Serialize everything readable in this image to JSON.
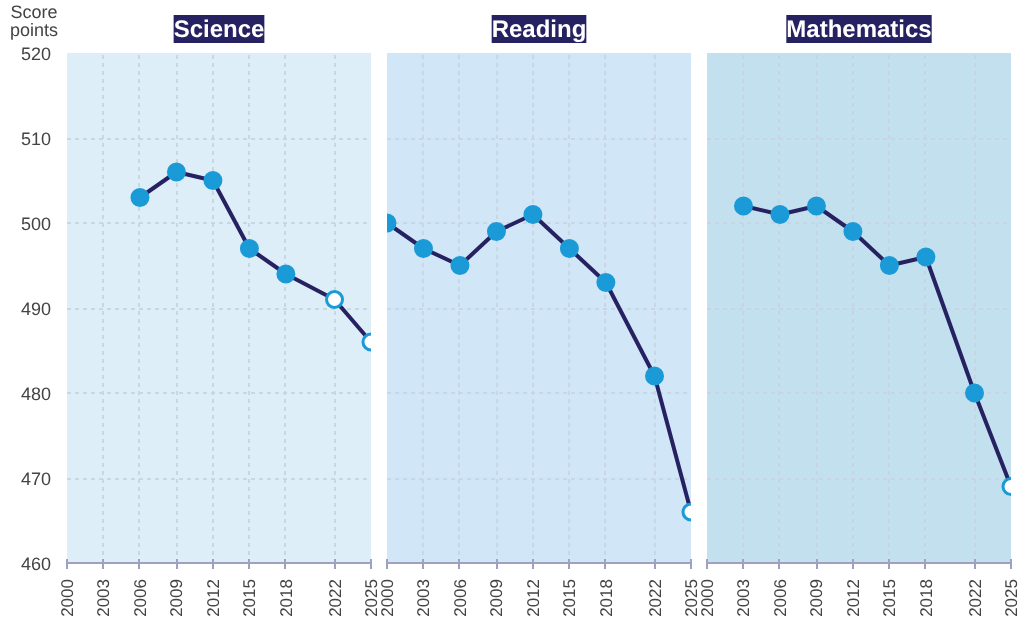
{
  "chart_data": [
    {
      "type": "line",
      "title": "Science",
      "ylabel": "Score points",
      "marker": "circle",
      "grid": true,
      "xlim": [
        2000,
        2025
      ],
      "ylim": [
        460,
        520
      ],
      "xticks": [
        2000,
        2003,
        2006,
        2009,
        2012,
        2015,
        2018,
        2022,
        2025
      ],
      "yticks": [
        460,
        470,
        480,
        490,
        500,
        510,
        520
      ],
      "series": [
        {
          "color": "#262262",
          "x": [
            2006,
            2009,
            2012,
            2015,
            2018,
            2022,
            2025
          ],
          "values": [
            503,
            506,
            505,
            497,
            494,
            491,
            486
          ],
          "colors": [
            "#1a9ad6",
            "#1a9ad6",
            "#1a9ad6",
            "#1a9ad6",
            "#1a9ad6",
            "#ffffff",
            "#ffffff"
          ]
        }
      ]
    },
    {
      "type": "line",
      "title": "Reading",
      "marker": "circle",
      "grid": true,
      "tick_labels": "x",
      "xlim": [
        2000,
        2025
      ],
      "ylim": [
        460,
        520
      ],
      "xticks": [
        2000,
        2003,
        2006,
        2009,
        2012,
        2015,
        2018,
        2022,
        2025
      ],
      "yticks": [
        460,
        470,
        480,
        490,
        500,
        510,
        520
      ],
      "series": [
        {
          "color": "#262262",
          "x": [
            2000,
            2003,
            2006,
            2009,
            2012,
            2015,
            2018,
            2022,
            2025
          ],
          "values": [
            500,
            497,
            495,
            499,
            501,
            497,
            493,
            482,
            466
          ],
          "colors": [
            "#1a9ad6",
            "#1a9ad6",
            "#1a9ad6",
            "#1a9ad6",
            "#1a9ad6",
            "#1a9ad6",
            "#1a9ad6",
            "#1a9ad6",
            "#ffffff"
          ]
        }
      ]
    },
    {
      "type": "line",
      "title": "Mathematics",
      "marker": "circle",
      "grid": true,
      "tick_labels": "x",
      "xlim": [
        2000,
        2025
      ],
      "ylim": [
        460,
        520
      ],
      "xticks": [
        2000,
        2003,
        2006,
        2009,
        2012,
        2015,
        2018,
        2022,
        2025
      ],
      "yticks": [
        460,
        470,
        480,
        490,
        500,
        510,
        520
      ],
      "series": [
        {
          "color": "#262262",
          "x": [
            2003,
            2006,
            2009,
            2012,
            2015,
            2018,
            2022,
            2025
          ],
          "values": [
            502,
            501,
            502,
            499,
            495,
            496,
            480,
            469
          ],
          "colors": [
            "#1a9ad6",
            "#1a9ad6",
            "#1a9ad6",
            "#1a9ad6",
            "#1a9ad6",
            "#1a9ad6",
            "#1a9ad6",
            "#ffffff"
          ]
        }
      ]
    }
  ]
}
